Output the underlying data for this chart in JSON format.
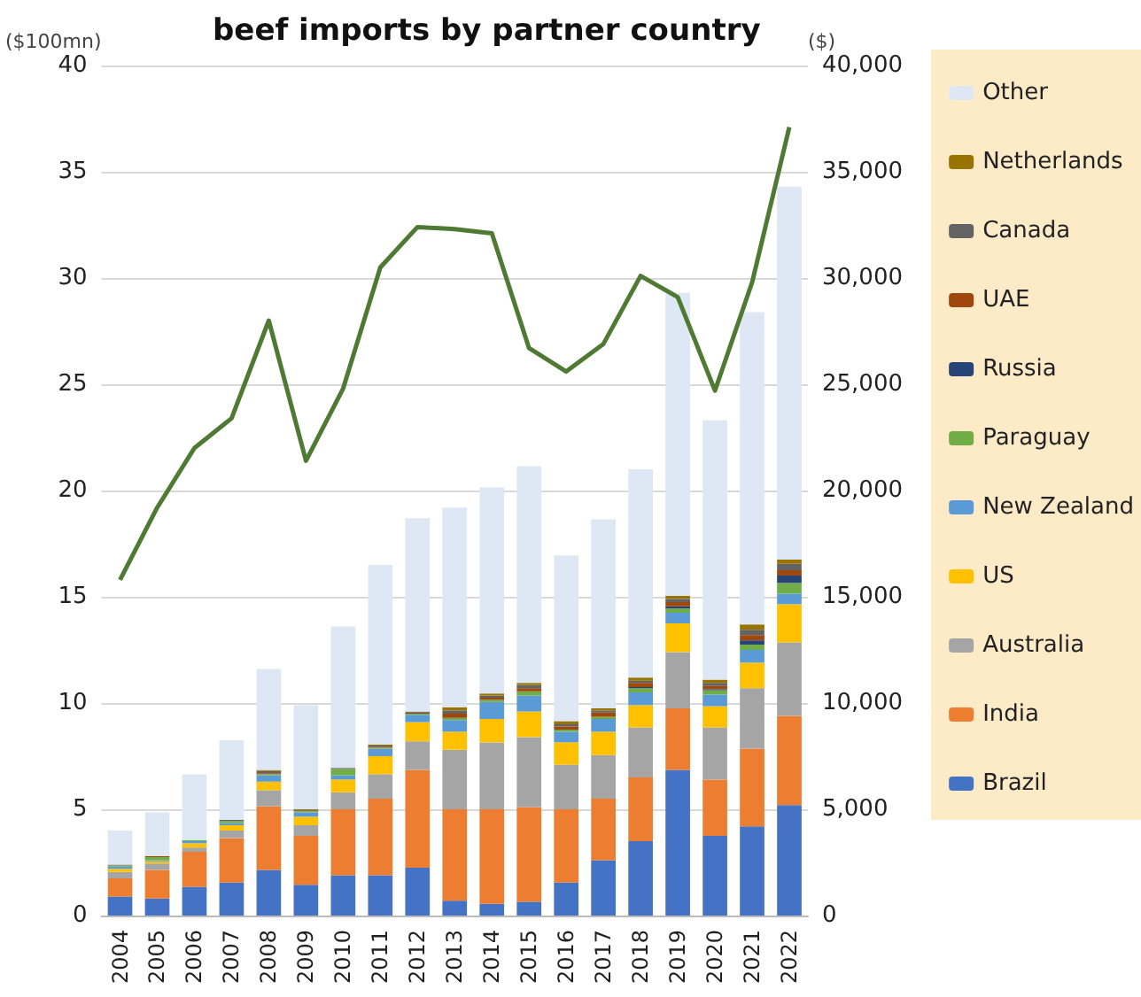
{
  "chart_data": {
    "type": "bar",
    "title": "beef imports by partner country",
    "ylabel": "($100mn)",
    "y2label": "($)",
    "categories": [
      "2004",
      "2005",
      "2006",
      "2007",
      "2008",
      "2009",
      "2010",
      "2011",
      "2012",
      "2013",
      "2014",
      "2015",
      "2016",
      "2017",
      "2018",
      "2019",
      "2020",
      "2021",
      "2022"
    ],
    "stacked": true,
    "ylim": [
      0,
      40
    ],
    "yticks": [
      0,
      5,
      10,
      15,
      20,
      25,
      30,
      35,
      40
    ],
    "y2lim": [
      0,
      40000
    ],
    "y2ticks": [
      {
        "value": 0,
        "label": "0"
      },
      {
        "value": 5000,
        "label": "5,000"
      },
      {
        "value": 10000,
        "label": "10,000"
      },
      {
        "value": 15000,
        "label": "15,000"
      },
      {
        "value": 20000,
        "label": "20,000"
      },
      {
        "value": 25000,
        "label": "25,000"
      },
      {
        "value": 30000,
        "label": "30,000"
      },
      {
        "value": 35000,
        "label": "35,000"
      },
      {
        "value": 40000,
        "label": "40,000"
      }
    ],
    "grid": "y",
    "legend": "right",
    "marker": "none",
    "series": [
      {
        "name": "Brazil",
        "color": "#4472c4",
        "values": [
          0.9,
          0.8,
          1.35,
          1.55,
          2.15,
          1.45,
          1.9,
          1.9,
          2.25,
          0.7,
          0.55,
          0.65,
          1.55,
          2.6,
          3.5,
          6.85,
          3.75,
          4.2,
          5.2
        ]
      },
      {
        "name": "India",
        "color": "#ed7d31",
        "values": [
          0.85,
          1.35,
          1.65,
          2.1,
          3.0,
          2.3,
          3.1,
          3.6,
          4.6,
          4.3,
          4.45,
          4.45,
          3.45,
          2.9,
          3.0,
          2.9,
          2.65,
          3.65,
          4.2
        ]
      },
      {
        "name": "Australia",
        "color": "#a5a5a5",
        "values": [
          0.3,
          0.3,
          0.2,
          0.35,
          0.75,
          0.5,
          0.8,
          1.15,
          1.35,
          2.8,
          3.15,
          3.3,
          2.1,
          2.05,
          2.35,
          2.65,
          2.45,
          2.85,
          3.45
        ]
      },
      {
        "name": "US",
        "color": "#ffc000",
        "values": [
          0.15,
          0.1,
          0.2,
          0.25,
          0.4,
          0.4,
          0.6,
          0.85,
          0.9,
          0.85,
          1.1,
          1.2,
          1.05,
          1.1,
          1.05,
          1.35,
          1.0,
          1.2,
          1.8
        ]
      },
      {
        "name": "New Zealand",
        "color": "#5b9bd5",
        "values": [
          0.1,
          0.05,
          0.1,
          0.1,
          0.3,
          0.2,
          0.2,
          0.35,
          0.35,
          0.55,
          0.8,
          0.75,
          0.5,
          0.6,
          0.6,
          0.5,
          0.55,
          0.6,
          0.5
        ]
      },
      {
        "name": "Paraguay",
        "color": "#70ad47",
        "values": [
          0.05,
          0.15,
          0.05,
          0.1,
          0.05,
          0.05,
          0.3,
          0.05,
          0.05,
          0.1,
          0.1,
          0.2,
          0.1,
          0.1,
          0.2,
          0.2,
          0.2,
          0.25,
          0.5
        ]
      },
      {
        "name": "Russia",
        "color": "#264478",
        "values": [
          0,
          0,
          0,
          0,
          0,
          0,
          0,
          0,
          0,
          0,
          0,
          0,
          0,
          0,
          0.05,
          0.1,
          0.05,
          0.2,
          0.35
        ]
      },
      {
        "name": "UAE",
        "color": "#9e480e",
        "values": [
          0,
          0.05,
          0,
          0,
          0.05,
          0,
          0,
          0.05,
          0.05,
          0.2,
          0.1,
          0.15,
          0.15,
          0.2,
          0.2,
          0.2,
          0.15,
          0.25,
          0.25
        ]
      },
      {
        "name": "Canada",
        "color": "#636363",
        "values": [
          0.05,
          0,
          0,
          0.05,
          0.1,
          0.05,
          0.05,
          0.05,
          0.05,
          0.15,
          0.1,
          0.15,
          0.1,
          0.1,
          0.1,
          0.15,
          0.15,
          0.25,
          0.3
        ]
      },
      {
        "name": "Netherlands",
        "color": "#997300",
        "values": [
          0,
          0,
          0,
          0,
          0.05,
          0.05,
          0,
          0.05,
          0,
          0.15,
          0.1,
          0.1,
          0.15,
          0.1,
          0.15,
          0.15,
          0.15,
          0.25,
          0.2
        ]
      },
      {
        "name": "Other",
        "color": "#dee8f4",
        "values": [
          1.6,
          2.05,
          3.1,
          3.75,
          4.75,
          4.9,
          6.65,
          8.45,
          9.1,
          9.4,
          9.7,
          10.2,
          7.8,
          8.9,
          9.8,
          14.25,
          12.2,
          14.7,
          17.55
        ]
      },
      {
        "type": "line",
        "axis": "y2",
        "color": "#4e7a33",
        "values": [
          15800,
          19200,
          22000,
          23400,
          28000,
          21400,
          24800,
          30500,
          32400,
          32300,
          32100,
          26700,
          25600,
          26900,
          30100,
          29100,
          24700,
          29800,
          37100
        ]
      }
    ]
  }
}
